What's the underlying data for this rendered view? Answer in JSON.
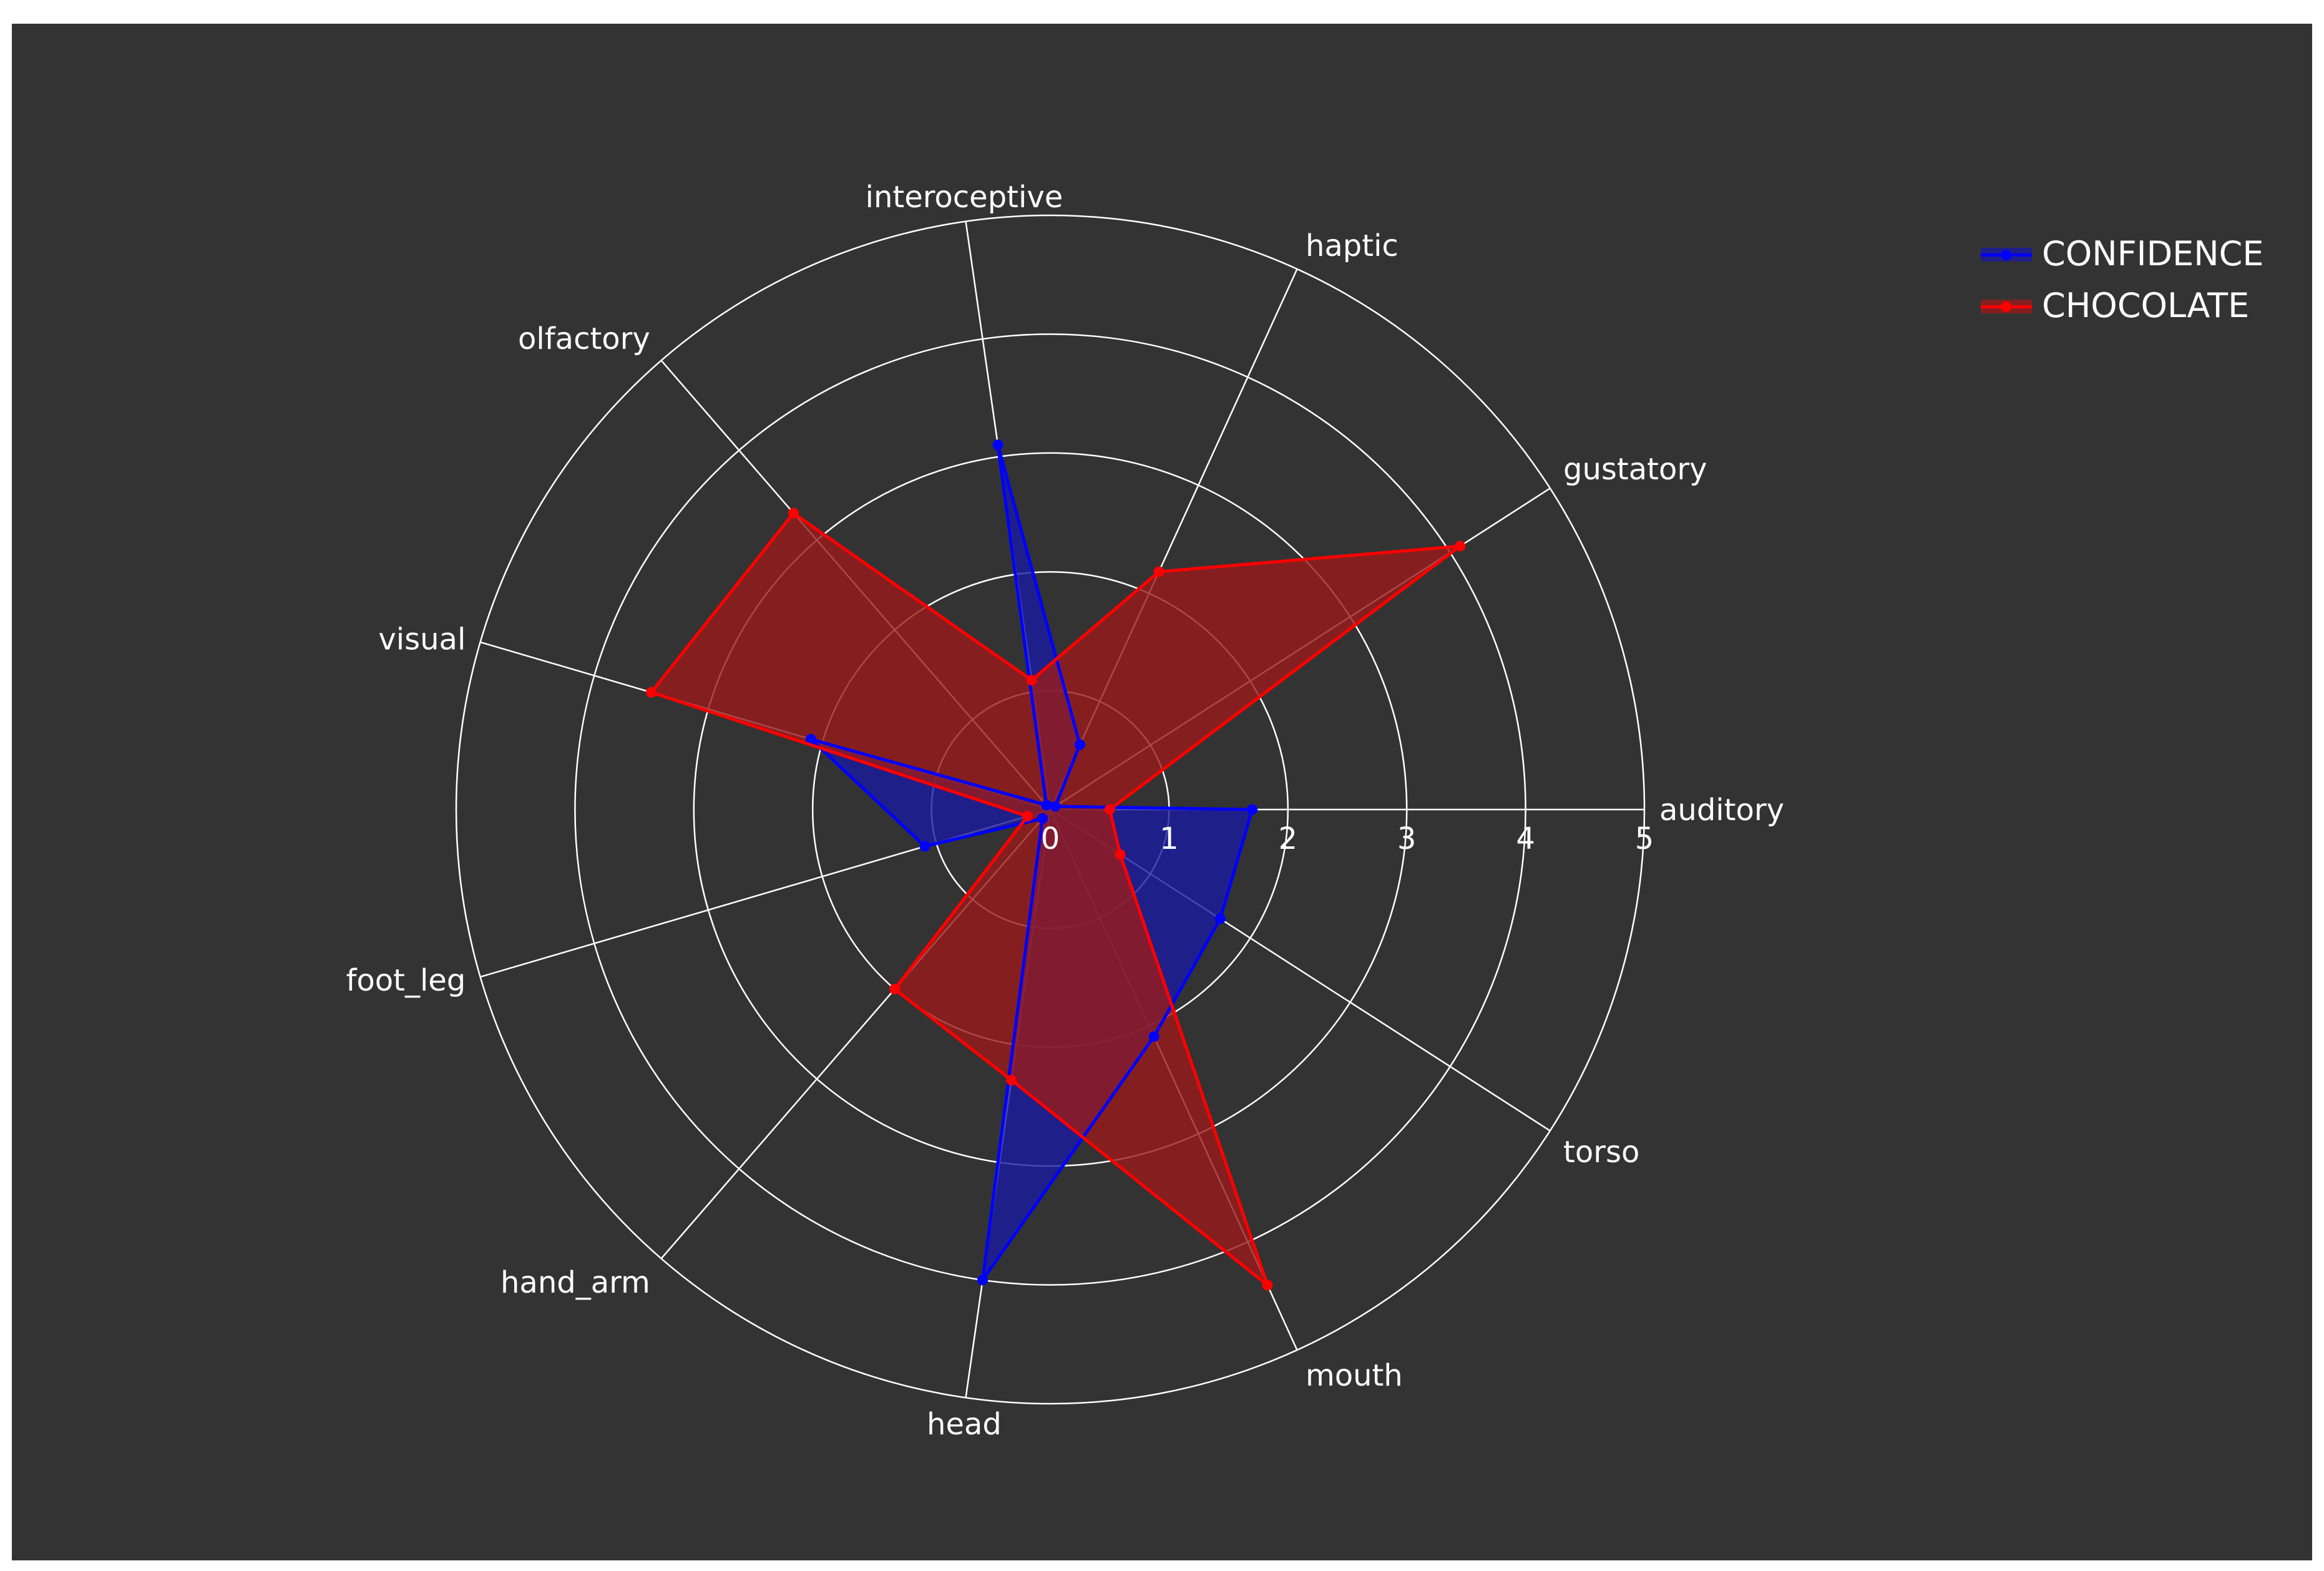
{
  "chart_data": {
    "type": "radar",
    "categories": [
      "auditory",
      "gustatory",
      "haptic",
      "interoceptive",
      "olfactory",
      "visual",
      "foot_leg",
      "hand_arm",
      "head",
      "mouth",
      "torso"
    ],
    "radial_ticks": [
      "0",
      "1",
      "2",
      "3",
      "4",
      "5"
    ],
    "radial_range": [
      0,
      5
    ],
    "legend_position": "top-right",
    "series": [
      {
        "name": "CONFIDENCE",
        "color": "#0000ff",
        "fill": "#1a1a9f",
        "values": [
          1.7,
          0.05,
          0.6,
          3.1,
          0.05,
          2.1,
          1.1,
          0.1,
          4.0,
          2.1,
          1.7
        ]
      },
      {
        "name": "CHOCOLATE",
        "color": "#ff0000",
        "fill": "#9a1a1a",
        "values": [
          0.5,
          4.1,
          2.2,
          1.1,
          3.3,
          3.5,
          0.2,
          2.0,
          2.3,
          4.4,
          0.7
        ]
      }
    ]
  }
}
